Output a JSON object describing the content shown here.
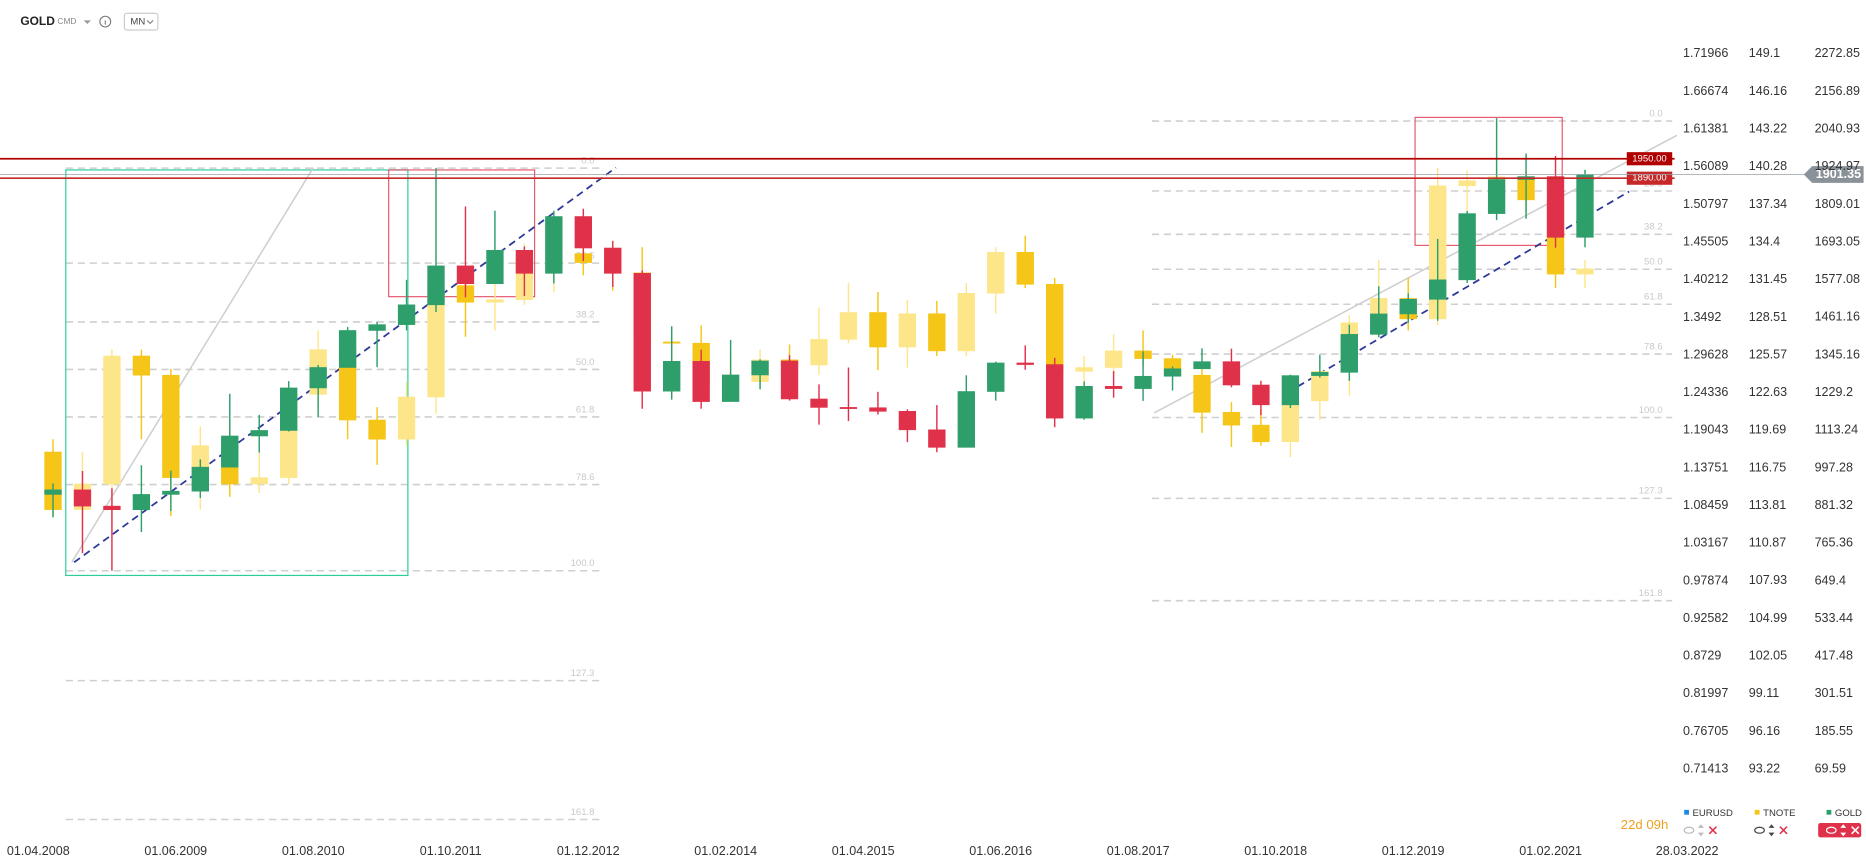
{
  "toolbar": {
    "symbol": "GOLD",
    "category": "CMD",
    "interval": "MN"
  },
  "countdown": "22d 09h",
  "chart_data": {
    "type": "candlestick",
    "xticks": [
      "01.04.2008",
      "01.06.2009",
      "01.08.2010",
      "01.10.2011",
      "01.12.2012",
      "01.02.2014",
      "01.04.2015",
      "01.06.2016",
      "01.08.2017",
      "01.10.2018",
      "01.12.2019",
      "01.02.2021",
      "28.03.2022"
    ],
    "x": [
      "01.04.2008",
      "01.07.2008",
      "01.10.2008",
      "01.01.2009",
      "01.04.2009",
      "01.07.2009",
      "01.10.2009",
      "01.01.2010",
      "01.04.2010",
      "01.07.2010",
      "01.10.2010",
      "01.01.2011",
      "01.04.2011",
      "01.07.2011",
      "01.10.2011",
      "01.01.2012",
      "01.04.2012",
      "01.07.2012",
      "01.10.2012",
      "01.01.2013",
      "01.04.2013",
      "01.07.2013",
      "01.10.2013",
      "01.01.2014",
      "01.04.2014",
      "01.07.2014",
      "01.10.2014",
      "01.01.2015",
      "01.04.2015",
      "01.07.2015",
      "01.10.2015",
      "01.01.2016",
      "01.04.2016",
      "01.07.2016",
      "01.10.2016",
      "01.01.2017",
      "01.04.2017",
      "01.07.2017",
      "01.10.2017",
      "01.01.2018",
      "01.04.2018",
      "01.07.2018",
      "01.10.2018",
      "01.01.2019",
      "01.04.2019",
      "01.07.2019",
      "01.10.2019",
      "01.01.2020",
      "01.04.2020",
      "01.07.2020",
      "01.10.2020",
      "01.01.2021",
      "01.04.2021"
    ],
    "ylim": [
      0.71413,
      1.71966
    ],
    "yticks": [
      1.71966,
      1.66674,
      1.61381,
      1.56089,
      1.50797,
      1.45505,
      1.40212,
      1.3492,
      1.29628,
      1.24336,
      1.19043,
      1.13751,
      1.08459,
      1.03167,
      0.97874,
      0.92582,
      0.8729,
      0.81997,
      0.76705,
      0.71413
    ],
    "y2lim": [
      93.22,
      149.1
    ],
    "y2ticks": [
      149.1,
      146.16,
      143.22,
      140.28,
      137.34,
      134.4,
      131.45,
      128.51,
      125.57,
      122.63,
      119.69,
      116.75,
      113.81,
      110.87,
      107.93,
      104.99,
      102.05,
      99.11,
      96.16,
      93.22
    ],
    "y3lim": [
      69.59,
      2272.85
    ],
    "y3ticks": [
      2272.85,
      2156.89,
      2040.93,
      1924.97,
      1809.01,
      1693.05,
      1577.08,
      1461.16,
      1345.16,
      1229.2,
      1113.24,
      997.28,
      881.32,
      765.36,
      649.4,
      533.44,
      417.48,
      301.51,
      185.55,
      69.59
    ],
    "series": [
      {
        "name": "EURUSD",
        "color": "#1e88e5",
        "axis": "y"
      },
      {
        "name": "TNOTE",
        "color": "#f5c518",
        "up_color": "#fde68a",
        "down_color": "#f5c518",
        "axis": "y2",
        "open": [
          118,
          113.5,
          115.5,
          125.5,
          124,
          116,
          118.5,
          115.5,
          116,
          122.5,
          126,
          120.5,
          119,
          122.3,
          131,
          129.7,
          129.9,
          133.4,
          133.5,
          132.8,
          132,
          126.6,
          126.5,
          123.1,
          123.5,
          125.2,
          124.8,
          126.8,
          128.9,
          126.2,
          128.8,
          125.9,
          130.4,
          133.6,
          131.1,
          124.3,
          124.6,
          125.9,
          125.3,
          124,
          121.1,
          120.1,
          118.8,
          122,
          124.3,
          128.1,
          130,
          128.4,
          138.8,
          139.2,
          139.5,
          137.7,
          131.9
        ],
        "high": [
          119,
          118,
          126,
          126,
          124.5,
          120,
          120.5,
          118,
          123,
          127.5,
          127.2,
          121.5,
          123.5,
          131.8,
          132,
          132.2,
          134.3,
          135.4,
          134.9,
          133.5,
          134,
          127.5,
          127.9,
          125.5,
          126,
          126.4,
          129.3,
          131.2,
          130.5,
          129.9,
          129.8,
          131.2,
          134,
          134.9,
          131.6,
          125.5,
          127.2,
          127.5,
          125.6,
          124.5,
          121.9,
          121.3,
          122.5,
          124.9,
          128.7,
          133,
          131.6,
          140.2,
          140,
          140.3,
          140,
          138,
          133
        ],
        "low": [
          113,
          112,
          112,
          119,
          113,
          113.5,
          114.5,
          114.8,
          115.5,
          121.5,
          119,
          117,
          118.5,
          121,
          127,
          127.5,
          129.5,
          130.5,
          131.8,
          130.6,
          124.5,
          122.2,
          122.9,
          122.3,
          123,
          123.7,
          124,
          126.5,
          124.4,
          124.6,
          125.5,
          125.5,
          128.8,
          130.8,
          123.5,
          123.2,
          124.1,
          124.7,
          123.9,
          119.5,
          118.4,
          118.5,
          117.6,
          120.5,
          122.4,
          127.4,
          127.5,
          127.9,
          136.2,
          138.3,
          136.7,
          130.8,
          130.8
        ],
        "close": [
          113.5,
          115.5,
          125.5,
          124,
          116,
          118.5,
          115.5,
          116,
          122.5,
          126,
          120.5,
          119,
          122.3,
          131,
          129.7,
          129.9,
          133.4,
          133.5,
          132.8,
          132,
          126.6,
          126.5,
          123.1,
          123.5,
          125.2,
          124.8,
          126.8,
          128.9,
          126.2,
          128.8,
          125.9,
          130.4,
          133.6,
          131.1,
          124.3,
          124.6,
          125.9,
          125.3,
          124,
          121.1,
          120.1,
          118.8,
          122,
          124.3,
          128.1,
          130,
          128.4,
          138.8,
          139.2,
          139.5,
          137.7,
          131.9,
          132.3
        ]
      },
      {
        "name": "GOLD",
        "color": "#26a269",
        "up_color": "#2e9e6b",
        "down_color": "#e0314b",
        "axis": "y3",
        "open": [
          916,
          930,
          880,
          869,
          916,
          926,
          1000,
          1096,
          1113,
          1244,
          1307,
          1421,
          1439,
          1500,
          1620,
          1565,
          1668,
          1597,
          1772,
          1675,
          1597,
          1234,
          1326,
          1202,
          1284,
          1327,
          1210,
          1184,
          1183,
          1172,
          1115,
          1061,
          1233,
          1321,
          1316,
          1151,
          1249,
          1242,
          1280,
          1303,
          1325,
          1253,
          1192,
          1282,
          1292,
          1409,
          1472,
          1517,
          1577,
          1781,
          1886,
          1895,
          1708
        ],
        "high": [
          950,
          988,
          935,
          1006,
          989,
          1024,
          1226,
          1161,
          1265,
          1315,
          1432,
          1448,
          1577,
          1921,
          1803,
          1790,
          1680,
          1790,
          1796,
          1697,
          1606,
          1434,
          1362,
          1392,
          1332,
          1345,
          1255,
          1307,
          1232,
          1178,
          1191,
          1283,
          1325,
          1375,
          1337,
          1264,
          1296,
          1357,
          1310,
          1366,
          1365,
          1266,
          1285,
          1346,
          1439,
          1557,
          1535,
          1703,
          1789,
          2075,
          1966,
          1959,
          1916
        ],
        "low": [
          845,
          735,
          681,
          800,
          865,
          905,
          1000,
          1045,
          1110,
          1155,
          1307,
          1308,
          1421,
          1478,
          1523,
          1565,
          1527,
          1566,
          1635,
          1555,
          1180,
          1208,
          1180,
          1202,
          1240,
          1205,
          1131,
          1142,
          1162,
          1077,
          1046,
          1061,
          1205,
          1300,
          1123,
          1146,
          1214,
          1204,
          1236,
          1303,
          1246,
          1160,
          1182,
          1276,
          1266,
          1400,
          1445,
          1451,
          1567,
          1761,
          1765,
          1676,
          1677
        ],
        "close": [
          930,
          880,
          869,
          916,
          926,
          1000,
          1096,
          1113,
          1244,
          1307,
          1421,
          1439,
          1500,
          1620,
          1565,
          1668,
          1597,
          1772,
          1675,
          1597,
          1234,
          1326,
          1202,
          1284,
          1327,
          1210,
          1184,
          1183,
          1172,
          1115,
          1061,
          1233,
          1321,
          1316,
          1151,
          1249,
          1242,
          1280,
          1303,
          1325,
          1253,
          1192,
          1282,
          1292,
          1409,
          1472,
          1517,
          1577,
          1781,
          1886,
          1895,
          1708,
          1901
        ]
      }
    ],
    "price_lines": [
      {
        "value": 1950,
        "label": "1950.00",
        "color": "#b00000"
      },
      {
        "value": 1890,
        "label": "1890.00",
        "color": "#c62828"
      }
    ],
    "last_price": {
      "value": 1901.35,
      "label": "1901.35",
      "color": "#8a9299"
    },
    "fibonacci": [
      {
        "high": 1921,
        "low": 681,
        "levels": [
          {
            "value": 0,
            "label": "0.0"
          },
          23.6,
          38.2,
          {
            "value": 50,
            "label": "50.0"
          },
          61.8,
          78.6,
          {
            "value": 100,
            "label": "100.0"
          },
          127.3,
          161.8
        ]
      },
      {
        "high": 2066,
        "low": 1153,
        "levels": [
          {
            "value": 0,
            "label": "0.0"
          },
          23.6,
          38.2,
          {
            "value": 50,
            "label": "50.0"
          },
          61.8,
          78.6,
          {
            "value": 100,
            "label": "100.0"
          },
          127.3,
          161.8
        ]
      }
    ]
  }
}
